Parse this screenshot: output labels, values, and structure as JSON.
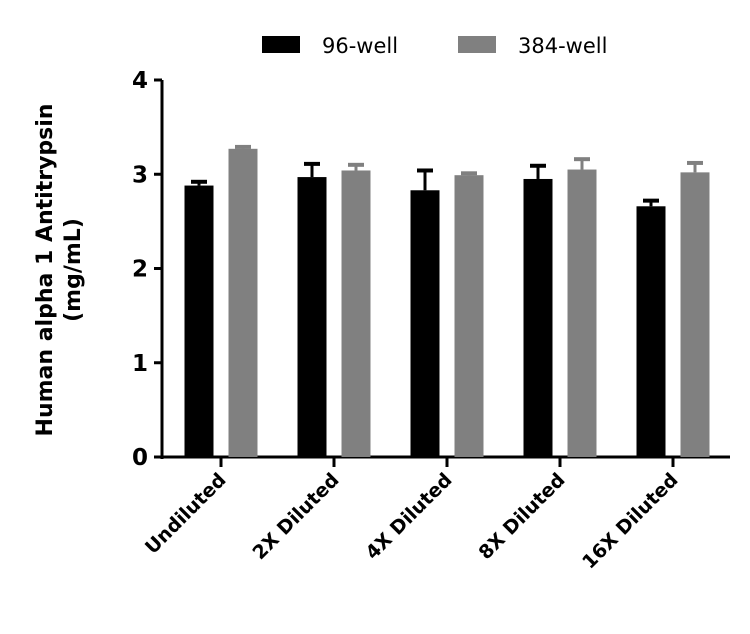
{
  "chart_data": {
    "type": "bar",
    "title": "",
    "xlabel": "",
    "ylabel": [
      "Human alpha 1 Antitrypsin",
      "(mg/mL)"
    ],
    "ylim": [
      0,
      4
    ],
    "yticks": [
      0,
      1,
      2,
      3,
      4
    ],
    "grid": false,
    "legend_position": "top",
    "categories": [
      "Undiluted",
      "2X Diluted",
      "4X Diluted",
      "8X Diluted",
      "16X Diluted"
    ],
    "series": [
      {
        "name": "96-well",
        "color": "#000000",
        "values": [
          2.88,
          2.97,
          2.83,
          2.95,
          2.66
        ],
        "error": [
          0.04,
          0.14,
          0.21,
          0.14,
          0.06
        ]
      },
      {
        "name": "384-well",
        "color": "#808080",
        "values": [
          3.27,
          3.04,
          2.99,
          3.05,
          3.02
        ],
        "error": [
          0.02,
          0.06,
          0.02,
          0.11,
          0.1
        ]
      }
    ]
  }
}
